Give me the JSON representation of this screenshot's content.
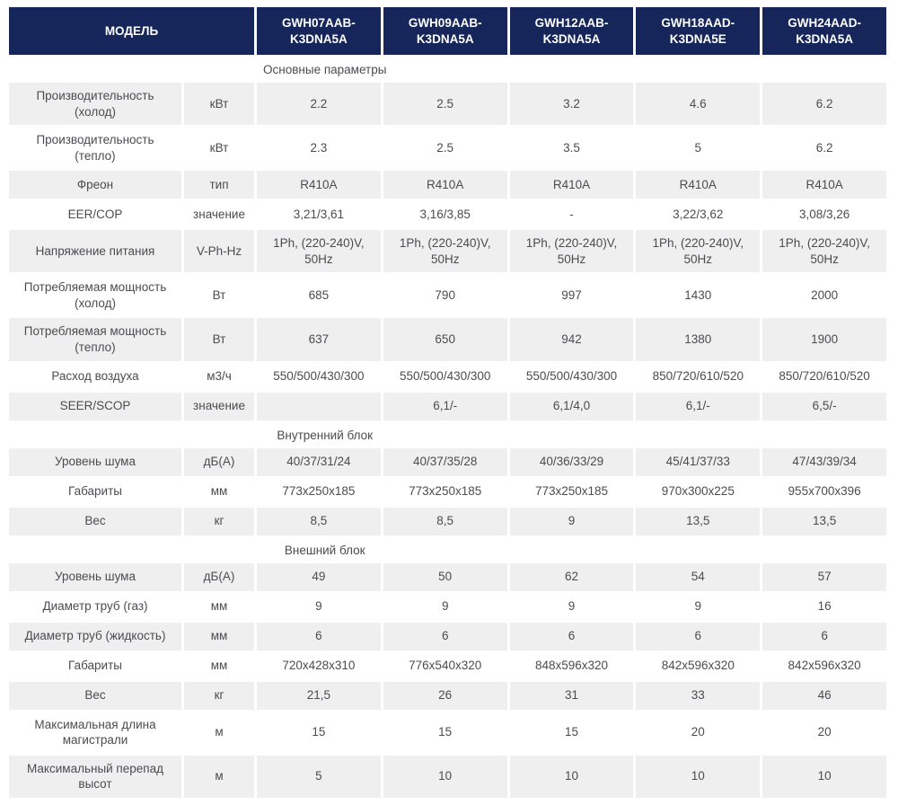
{
  "colors": {
    "header_bg": "#16265a",
    "header_text": "#ffffff",
    "alt_row_bg": "#efefef",
    "body_text": "#4b4c50"
  },
  "table": {
    "model_header": "МОДЕЛЬ",
    "models": [
      "GWH07AAB-K3DNA5A",
      "GWH09AAB-K3DNA5A",
      "GWH12AAB-K3DNA5A",
      "GWH18AAD-K3DNA5E",
      "GWH24AAD-K3DNA5A"
    ],
    "sections": [
      {
        "title": "Основные параметры",
        "rows": [
          {
            "param": "Производительность (холод)",
            "unit": "кВт",
            "values": [
              "2.2",
              "2.5",
              "3.2",
              "4.6",
              "6.2"
            ]
          },
          {
            "param": "Производительность (тепло)",
            "unit": "кВт",
            "values": [
              "2.3",
              "2.5",
              "3.5",
              "5",
              "6.2"
            ]
          },
          {
            "param": "Фреон",
            "unit": "тип",
            "values": [
              "R410A",
              "R410A",
              "R410A",
              "R410A",
              "R410A"
            ]
          },
          {
            "param": "EER/COP",
            "unit": "значение",
            "values": [
              "3,21/3,61",
              "3,16/3,85",
              "-",
              "3,22/3,62",
              "3,08/3,26"
            ]
          },
          {
            "param": "Напряжение питания",
            "unit": "V-Ph-Hz",
            "values": [
              "1Ph, (220-240)V, 50Hz",
              "1Ph, (220-240)V, 50Hz",
              "1Ph, (220-240)V, 50Hz",
              "1Ph, (220-240)V, 50Hz",
              "1Ph, (220-240)V, 50Hz"
            ]
          },
          {
            "param": "Потребляемая мощность (холод)",
            "unit": "Вт",
            "values": [
              "685",
              "790",
              "997",
              "1430",
              "2000"
            ]
          },
          {
            "param": "Потребляемая мощность (тепло)",
            "unit": "Вт",
            "values": [
              "637",
              "650",
              "942",
              "1380",
              "1900"
            ]
          },
          {
            "param": "Расход воздуха",
            "unit": "м3/ч",
            "values": [
              "550/500/430/300",
              "550/500/430/300",
              "550/500/430/300",
              "850/720/610/520",
              "850/720/610/520"
            ]
          },
          {
            "param": "SEER/SCOP",
            "unit": "значение",
            "values": [
              "",
              "6,1/-",
              "6,1/4,0",
              "6,1/-",
              "6,5/-"
            ]
          }
        ]
      },
      {
        "title": "Внутренний блок",
        "rows": [
          {
            "param": "Уровень шума",
            "unit": "дБ(А)",
            "values": [
              "40/37/31/24",
              "40/37/35/28",
              "40/36/33/29",
              "45/41/37/33",
              "47/43/39/34"
            ]
          },
          {
            "param": "Габариты",
            "unit": "мм",
            "values": [
              "773x250x185",
              "773x250x185",
              "773x250x185",
              "970x300x225",
              "955x700x396"
            ]
          },
          {
            "param": "Вес",
            "unit": "кг",
            "values": [
              "8,5",
              "8,5",
              "9",
              "13,5",
              "13,5"
            ]
          }
        ]
      },
      {
        "title": "Внешний блок",
        "rows": [
          {
            "param": "Уровень шума",
            "unit": "дБ(А)",
            "values": [
              "49",
              "50",
              "62",
              "54",
              "57"
            ]
          },
          {
            "param": "Диаметр труб (газ)",
            "unit": "мм",
            "values": [
              "9",
              "9",
              "9",
              "9",
              "16"
            ]
          },
          {
            "param": "Диаметр труб (жидкость)",
            "unit": "мм",
            "values": [
              "6",
              "6",
              "6",
              "6",
              "6"
            ]
          },
          {
            "param": "Габариты",
            "unit": "мм",
            "values": [
              "720x428x310",
              "776x540x320",
              "848x596x320",
              "842x596x320",
              "842x596x320"
            ]
          },
          {
            "param": "Вес",
            "unit": "кг",
            "values": [
              "21,5",
              "26",
              "31",
              "33",
              "46"
            ]
          },
          {
            "param": "Максимальная длина магистрали",
            "unit": "м",
            "values": [
              "15",
              "15",
              "15",
              "20",
              "20"
            ]
          },
          {
            "param": "Максимальный перепад высот",
            "unit": "м",
            "values": [
              "5",
              "10",
              "10",
              "10",
              "10"
            ]
          }
        ]
      }
    ]
  }
}
